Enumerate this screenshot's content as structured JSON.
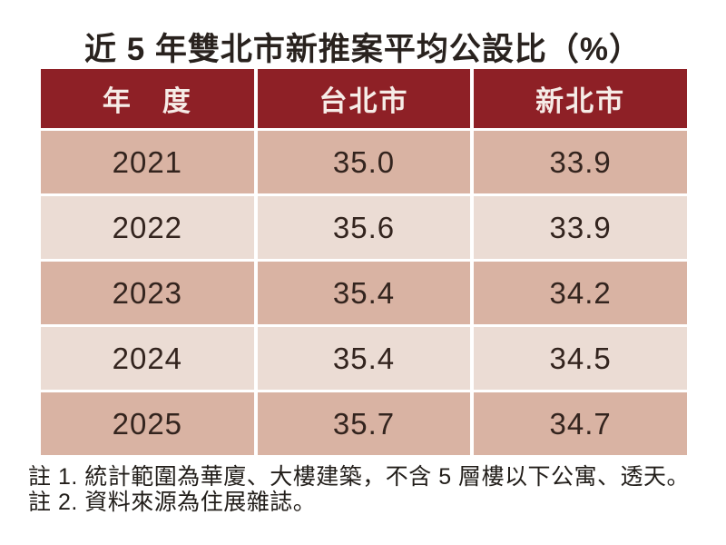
{
  "page": {
    "title": "近 5 年雙北市新推案平均公設比（%）"
  },
  "table": {
    "headers": {
      "year": "年　度",
      "taipei": "台北市",
      "new_taipei": "新北市"
    },
    "rows": [
      {
        "year": "2021",
        "taipei": "35.0",
        "new_taipei": "33.9"
      },
      {
        "year": "2022",
        "taipei": "35.6",
        "new_taipei": "33.9"
      },
      {
        "year": "2023",
        "taipei": "35.4",
        "new_taipei": "34.2"
      },
      {
        "year": "2024",
        "taipei": "35.4",
        "new_taipei": "34.5"
      },
      {
        "year": "2025",
        "taipei": "35.7",
        "new_taipei": "34.7"
      }
    ]
  },
  "notes": {
    "line1": "註 1. 統計範圍為華廈、大樓建築，不含 5 層樓以下公寓、透天。",
    "line2": "註 2. 資料來源為住展雜誌。"
  },
  "colors": {
    "header_bg": "#8E2026",
    "row_dark_bg": "#D9B3A3",
    "row_light_bg": "#EBDCD4",
    "header_text": "#F6ECE7",
    "body_text": "#33241E",
    "title_text": "#29221E",
    "background": "#FFFFFF"
  },
  "chart_data": {
    "type": "table",
    "title": "近 5 年雙北市新推案平均公設比（%）",
    "categories": [
      "2021",
      "2022",
      "2023",
      "2024",
      "2025"
    ],
    "series": [
      {
        "name": "台北市",
        "values": [
          35.0,
          35.6,
          35.4,
          35.4,
          35.7
        ]
      },
      {
        "name": "新北市",
        "values": [
          33.9,
          33.9,
          34.2,
          34.5,
          34.7
        ]
      }
    ],
    "xlabel": "年度",
    "ylabel": "平均公設比 (%)",
    "notes": [
      "註 1. 統計範圍為華廈、大樓建築，不含 5 層樓以下公寓、透天。",
      "註 2. 資料來源為住展雜誌。"
    ]
  }
}
